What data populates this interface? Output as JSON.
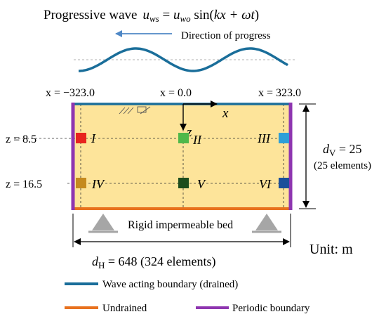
{
  "header": {
    "label": "Progressive wave",
    "equation_lhs_var": "u",
    "equation_lhs_sub": "ws",
    "equation_eq": " = ",
    "equation_rhs_var": "u",
    "equation_rhs_sub": "wo",
    "equation_func": " sin(",
    "equation_args": "kx + ωt",
    "equation_close": ")"
  },
  "direction": {
    "label": "Direction of progress"
  },
  "x_labels": {
    "left": "x = −323.0",
    "center": "x = 0.0",
    "right": "x = 323.0"
  },
  "axis_labels": {
    "x": "x",
    "z": "z"
  },
  "z_labels": {
    "upper": "z = 8.5",
    "lower": "z = 16.5"
  },
  "points": [
    {
      "id": "I",
      "color": "#e8231f"
    },
    {
      "id": "II",
      "color": "#4fb84a"
    },
    {
      "id": "III",
      "color": "#2e9fd8"
    },
    {
      "id": "IV",
      "color": "#c58a1e"
    },
    {
      "id": "V",
      "color": "#1d4d1d"
    },
    {
      "id": "VI",
      "color": "#1b4f9a"
    }
  ],
  "depth": {
    "var": "d",
    "sub": "V",
    "value": " = 25",
    "elements": "(25 elements)"
  },
  "width": {
    "var": "d",
    "sub": "H",
    "value": "  = 648  (324 elements)"
  },
  "bed_label": "Rigid impermeable bed",
  "unit_label": "Unit:  m",
  "legend": {
    "wave_boundary": "Wave acting boundary (drained)",
    "undrained": "Undrained",
    "periodic": "Periodic boundary"
  },
  "colors": {
    "soil": "#fde49a",
    "wave_boundary": "#1a6e9a",
    "undrained": "#e8711e",
    "periodic": "#8e35b0",
    "support": "#a6a6a6",
    "direction_arrow": "#4f88c6",
    "wave": "#1a6e9a"
  }
}
